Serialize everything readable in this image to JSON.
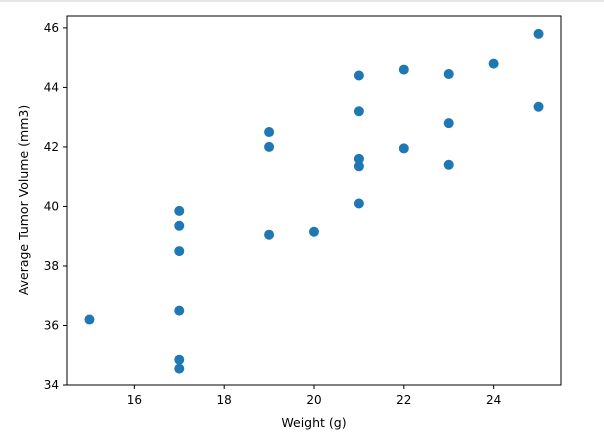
{
  "chart_data": {
    "type": "scatter",
    "title": "",
    "xlabel": "Weight (g)",
    "ylabel": "Average Tumor Volume (mm3)",
    "xlim": [
      14.5,
      25.5
    ],
    "ylim": [
      34,
      46.4
    ],
    "xticks": [
      16,
      18,
      20,
      22,
      24
    ],
    "yticks": [
      34,
      36,
      38,
      40,
      42,
      44,
      46
    ],
    "grid": false,
    "marker_color": "#1f77b4",
    "series": [
      {
        "points": [
          {
            "x": 15,
            "y": 36.2
          },
          {
            "x": 17,
            "y": 34.55
          },
          {
            "x": 17,
            "y": 34.85
          },
          {
            "x": 17,
            "y": 36.5
          },
          {
            "x": 17,
            "y": 38.5
          },
          {
            "x": 17,
            "y": 39.35
          },
          {
            "x": 17,
            "y": 39.85
          },
          {
            "x": 19,
            "y": 39.05
          },
          {
            "x": 19,
            "y": 42.0
          },
          {
            "x": 19,
            "y": 42.5
          },
          {
            "x": 20,
            "y": 39.15
          },
          {
            "x": 21,
            "y": 40.1
          },
          {
            "x": 21,
            "y": 41.35
          },
          {
            "x": 21,
            "y": 41.6
          },
          {
            "x": 21,
            "y": 43.2
          },
          {
            "x": 21,
            "y": 44.4
          },
          {
            "x": 22,
            "y": 41.95
          },
          {
            "x": 22,
            "y": 44.6
          },
          {
            "x": 23,
            "y": 41.4
          },
          {
            "x": 23,
            "y": 42.8
          },
          {
            "x": 23,
            "y": 44.45
          },
          {
            "x": 24,
            "y": 44.8
          },
          {
            "x": 25,
            "y": 43.35
          },
          {
            "x": 25,
            "y": 45.8
          }
        ]
      }
    ]
  }
}
